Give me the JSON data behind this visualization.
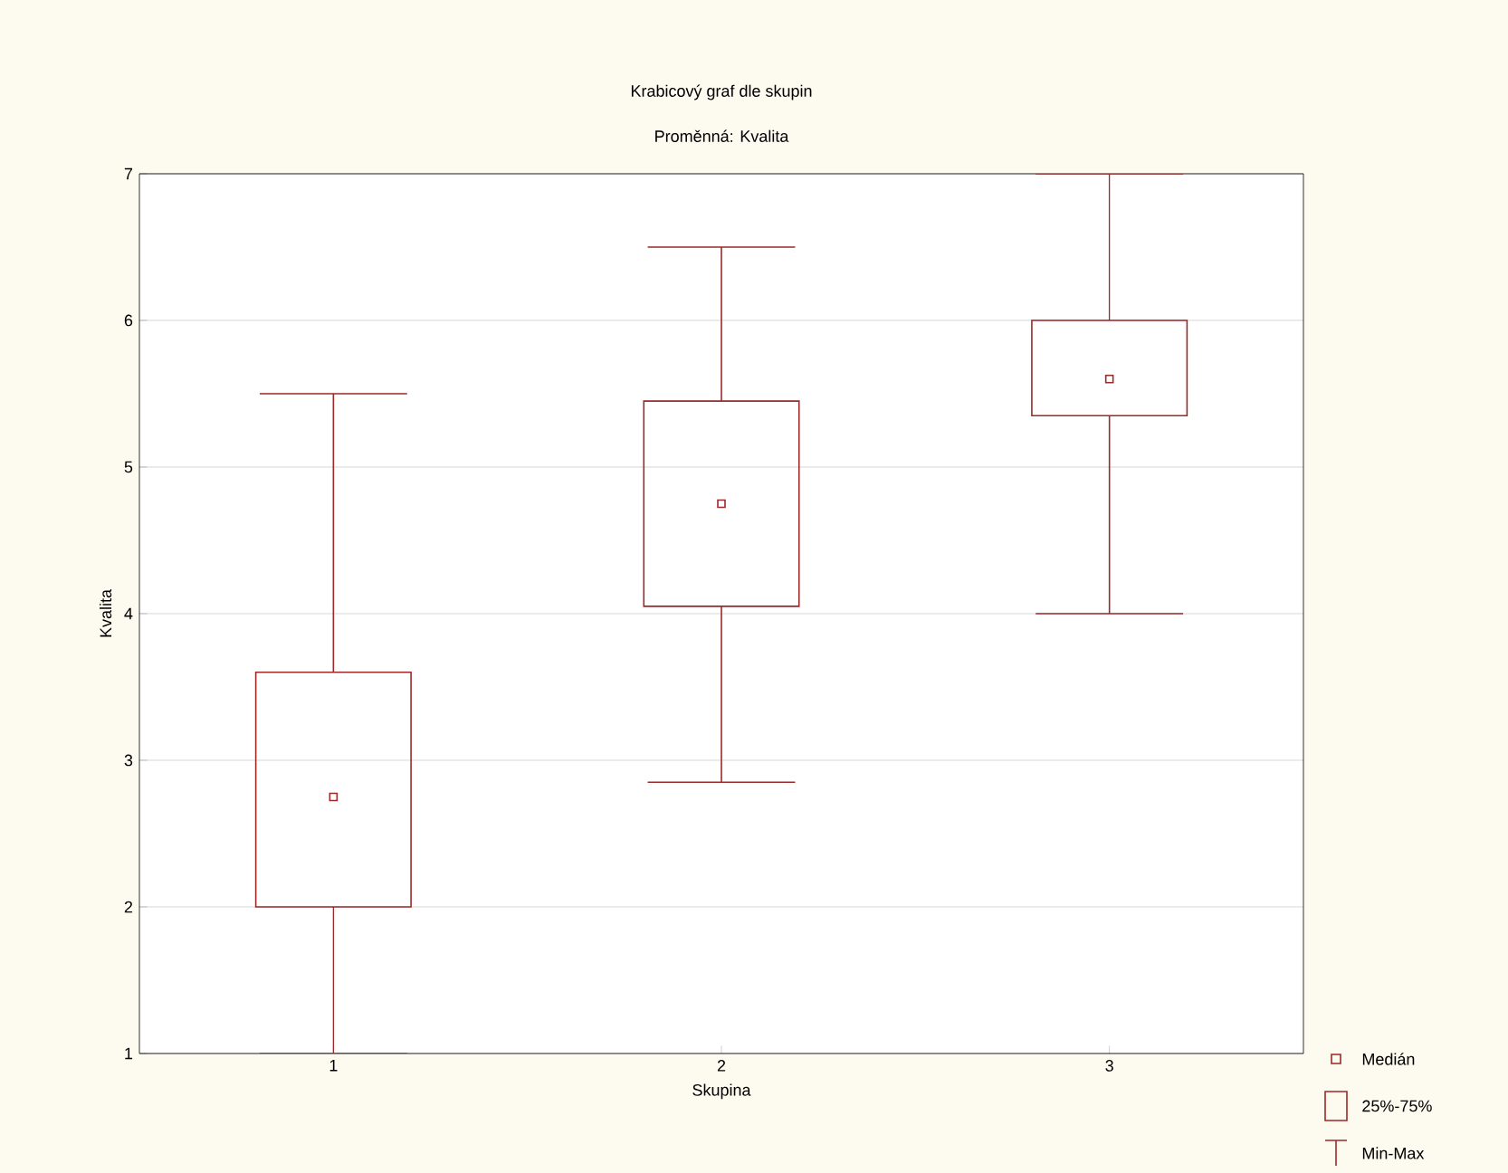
{
  "chart_data": {
    "type": "box",
    "title": "Krabicový graf dle skupin",
    "subtitle": "Proměnná: Kvalita",
    "xlabel": "Skupina",
    "ylabel": "Kvalita",
    "categories": [
      "1",
      "2",
      "3"
    ],
    "boxes": [
      {
        "low": 1,
        "q1": 2.0,
        "median": 2.75,
        "q3": 3.6,
        "high": 5.5
      },
      {
        "low": 2.85,
        "q1": 4.05,
        "median": 4.75,
        "q3": 5.45,
        "high": 6.5
      },
      {
        "low": 4.0,
        "q1": 5.35,
        "median": 5.6,
        "q3": 6.0,
        "high": 7
      }
    ],
    "color": "#9b2a2a",
    "ylim": [
      1,
      7
    ],
    "yticks": [
      1,
      2,
      3,
      4,
      5,
      6,
      7
    ],
    "grid": "y",
    "annotations": [
      "Medián",
      "25%-75%",
      "Min-Max"
    ]
  }
}
